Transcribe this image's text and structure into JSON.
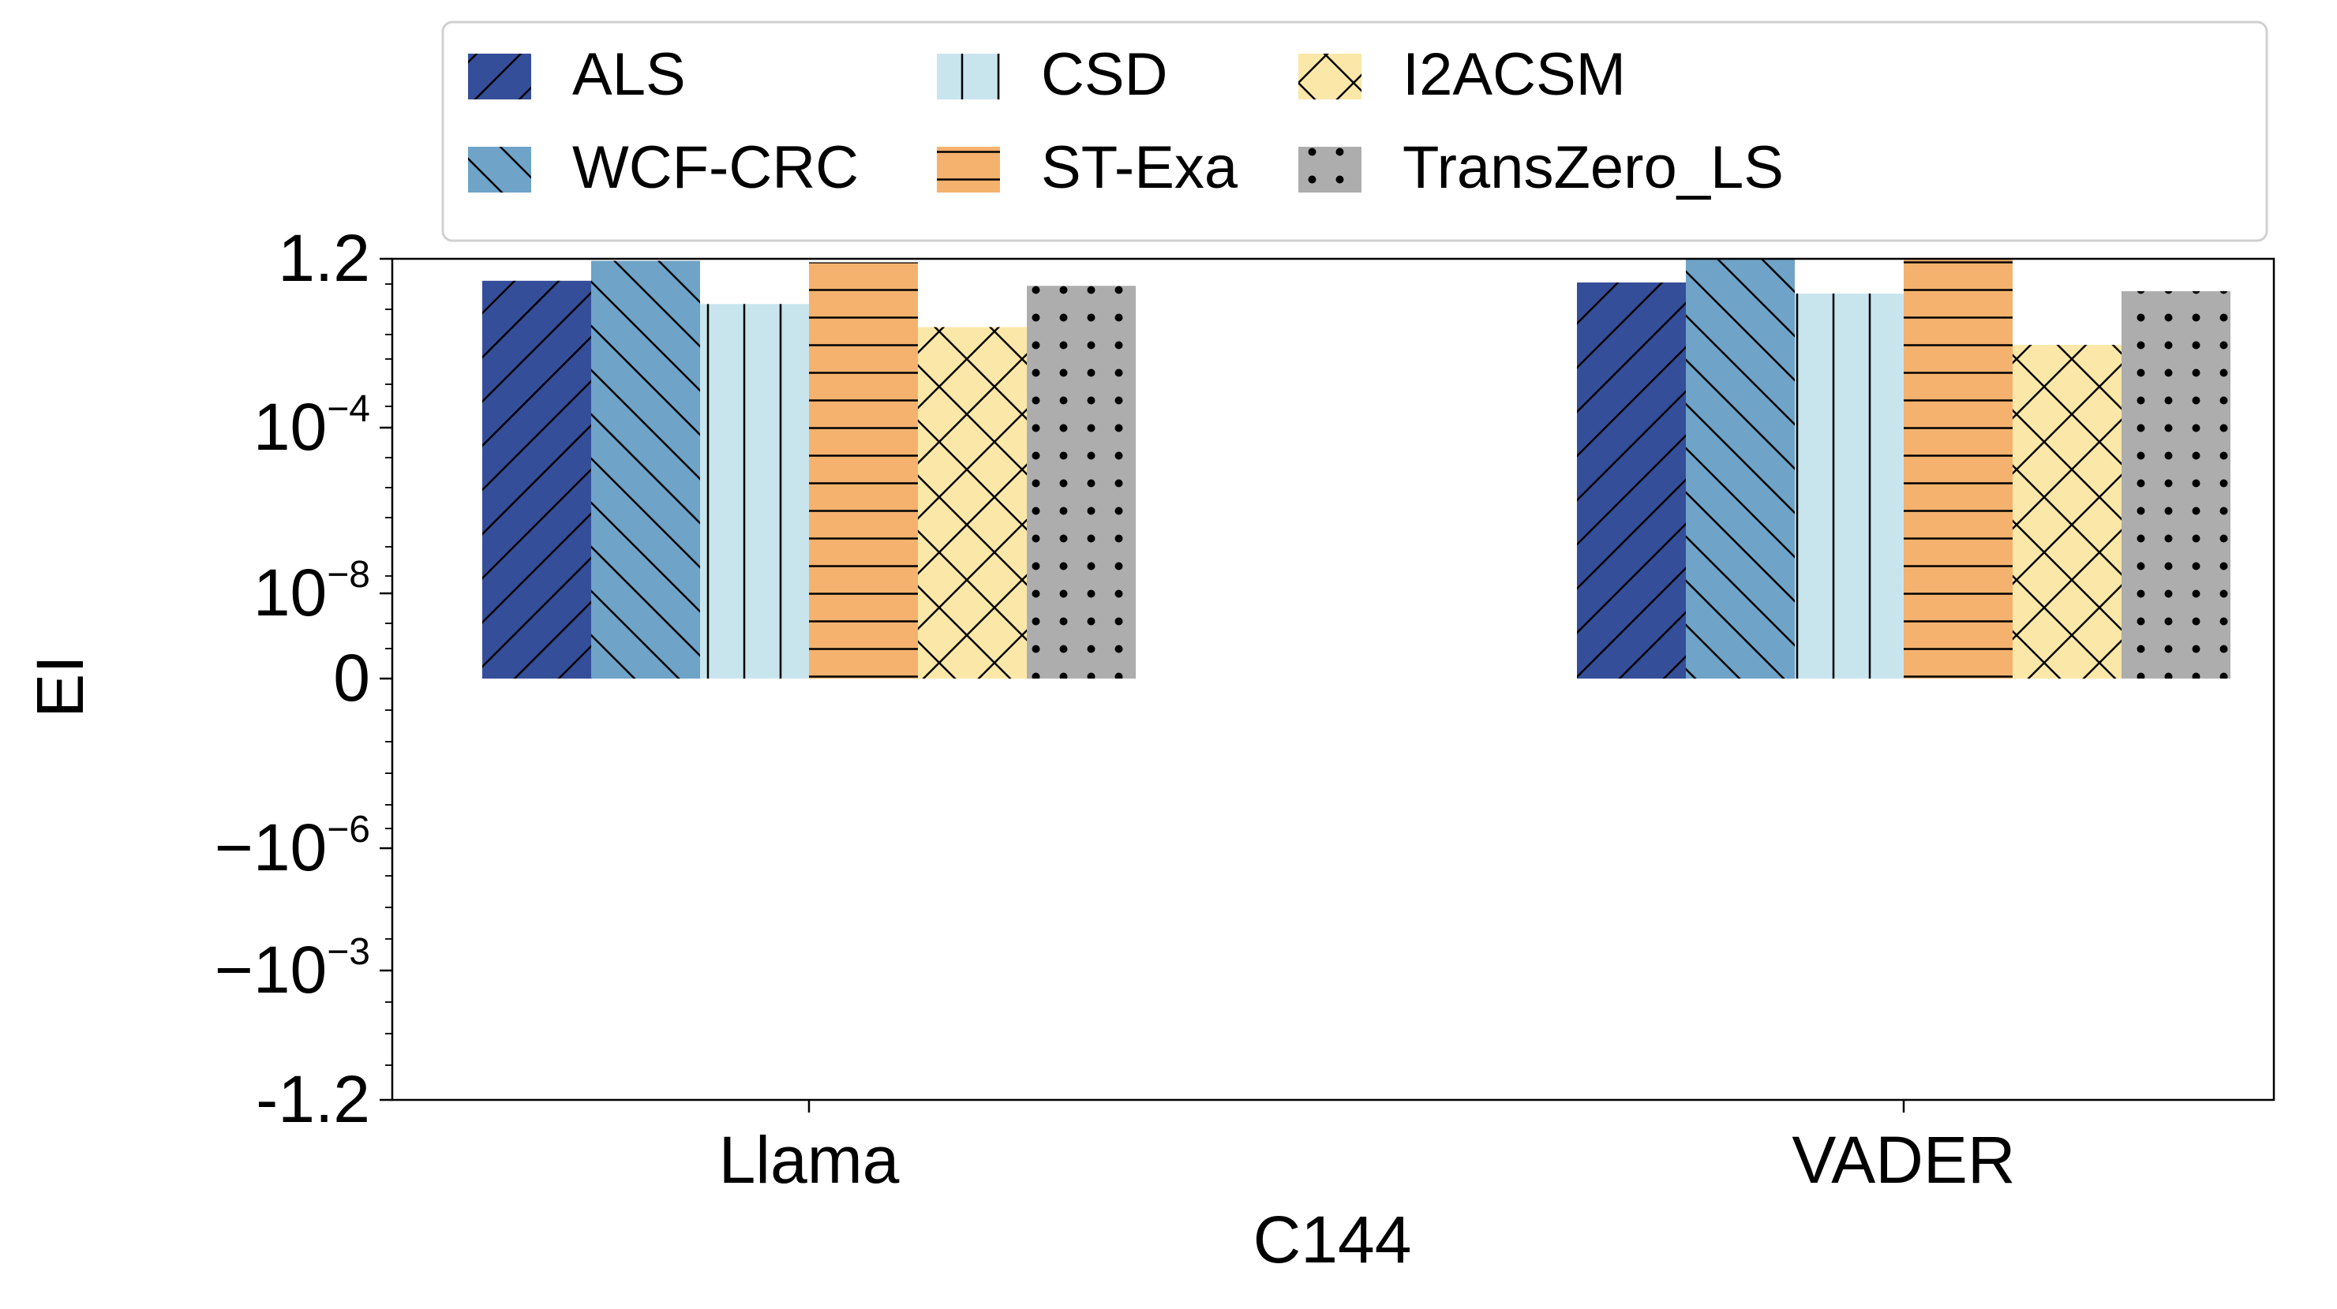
{
  "chart_data": {
    "type": "bar",
    "title": "",
    "xlabel": "C144",
    "ylabel": "EI",
    "yscale": "symlog",
    "categories": [
      "Llama",
      "VADER"
    ],
    "yticks": [
      {
        "main": "1.2",
        "sup": "",
        "value": 1.2
      },
      {
        "main": "10",
        "sup": "−4",
        "value": 0.0001
      },
      {
        "main": "10",
        "sup": "−8",
        "value": 1e-08
      },
      {
        "main": "0",
        "sup": "",
        "value": 0
      },
      {
        "main": "−10",
        "sup": "−6",
        "value": -1e-06
      },
      {
        "main": "−10",
        "sup": "−3",
        "value": -0.001
      },
      {
        "main": "-1.2",
        "sup": "",
        "value": -1.2
      }
    ],
    "series": [
      {
        "name": "ALS",
        "color": "#354e99",
        "hatch": "slash",
        "values": [
          0.28,
          0.25
        ]
      },
      {
        "name": "WCF-CRC",
        "color": "#6fa3c8",
        "hatch": "backslash",
        "values": [
          1.05,
          1.15
        ]
      },
      {
        "name": "CSD",
        "color": "#c8e5ee",
        "hatch": "vertical",
        "values": [
          0.06,
          0.12
        ]
      },
      {
        "name": "ST-Exa",
        "color": "#f4b26e",
        "hatch": "horizontal",
        "values": [
          0.95,
          1.2
        ]
      },
      {
        "name": "I2ACSM",
        "color": "#fbe8a8",
        "hatch": "cross",
        "values": [
          0.013,
          0.004
        ]
      },
      {
        "name": "TransZero_LS",
        "color": "#adadad",
        "hatch": "dots",
        "values": [
          0.2,
          0.14
        ]
      }
    ]
  }
}
